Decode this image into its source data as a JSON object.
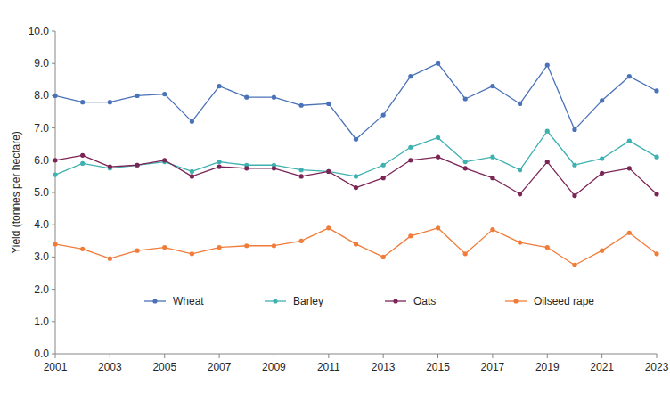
{
  "chart_data": {
    "type": "line",
    "y_label": "Yield (tonnes per hectare)",
    "x": [
      2001,
      2002,
      2003,
      2004,
      2005,
      2006,
      2007,
      2008,
      2009,
      2010,
      2011,
      2012,
      2013,
      2014,
      2015,
      2016,
      2017,
      2018,
      2019,
      2020,
      2021,
      2022,
      2023
    ],
    "xlim": [
      2001,
      2023
    ],
    "xticks": [
      2001,
      2003,
      2005,
      2007,
      2009,
      2011,
      2013,
      2015,
      2017,
      2019,
      2021,
      2023
    ],
    "ylim": [
      0,
      10
    ],
    "yticks": [
      {
        "value": 0,
        "label": "0.0"
      },
      {
        "value": 1,
        "label": "1.0"
      },
      {
        "value": 2,
        "label": "2.0"
      },
      {
        "value": 3,
        "label": "3.0"
      },
      {
        "value": 4,
        "label": "4.0"
      },
      {
        "value": 5,
        "label": "5.0"
      },
      {
        "value": 6,
        "label": "6.0"
      },
      {
        "value": 7,
        "label": "7.0"
      },
      {
        "value": 8,
        "label": "8.0"
      },
      {
        "value": 9,
        "label": "9.0"
      },
      {
        "value": 10,
        "label": "10.0"
      }
    ],
    "grid": false,
    "legend": "bottom",
    "marker": "circle",
    "series": [
      {
        "name": "Wheat",
        "color": "#4a72b8",
        "values": [
          8.0,
          7.8,
          7.8,
          8.0,
          8.05,
          7.2,
          8.3,
          7.95,
          7.95,
          7.7,
          7.75,
          6.65,
          7.4,
          8.6,
          9.0,
          7.9,
          8.3,
          7.75,
          8.95,
          6.95,
          7.85,
          8.6,
          8.15
        ]
      },
      {
        "name": "Barley",
        "color": "#3fb1b0",
        "values": [
          5.55,
          5.9,
          5.75,
          5.85,
          5.95,
          5.65,
          5.95,
          5.85,
          5.85,
          5.7,
          5.65,
          5.5,
          5.85,
          6.4,
          6.7,
          5.95,
          6.1,
          5.7,
          6.9,
          5.85,
          6.05,
          6.6,
          6.1
        ]
      },
      {
        "name": "Oats",
        "color": "#7b2456",
        "values": [
          6.0,
          6.15,
          5.8,
          5.85,
          6.0,
          5.5,
          5.8,
          5.75,
          5.75,
          5.5,
          5.65,
          5.15,
          5.45,
          6.0,
          6.1,
          5.75,
          5.45,
          4.95,
          5.95,
          4.9,
          5.6,
          5.75,
          4.95
        ]
      },
      {
        "name": "Oilseed rape",
        "color": "#f07c3a",
        "values": [
          3.4,
          3.25,
          2.95,
          3.2,
          3.3,
          3.1,
          3.3,
          3.35,
          3.35,
          3.5,
          3.9,
          3.4,
          3.0,
          3.65,
          3.9,
          3.1,
          3.85,
          3.45,
          3.3,
          2.75,
          3.2,
          3.75,
          3.1
        ]
      }
    ]
  }
}
